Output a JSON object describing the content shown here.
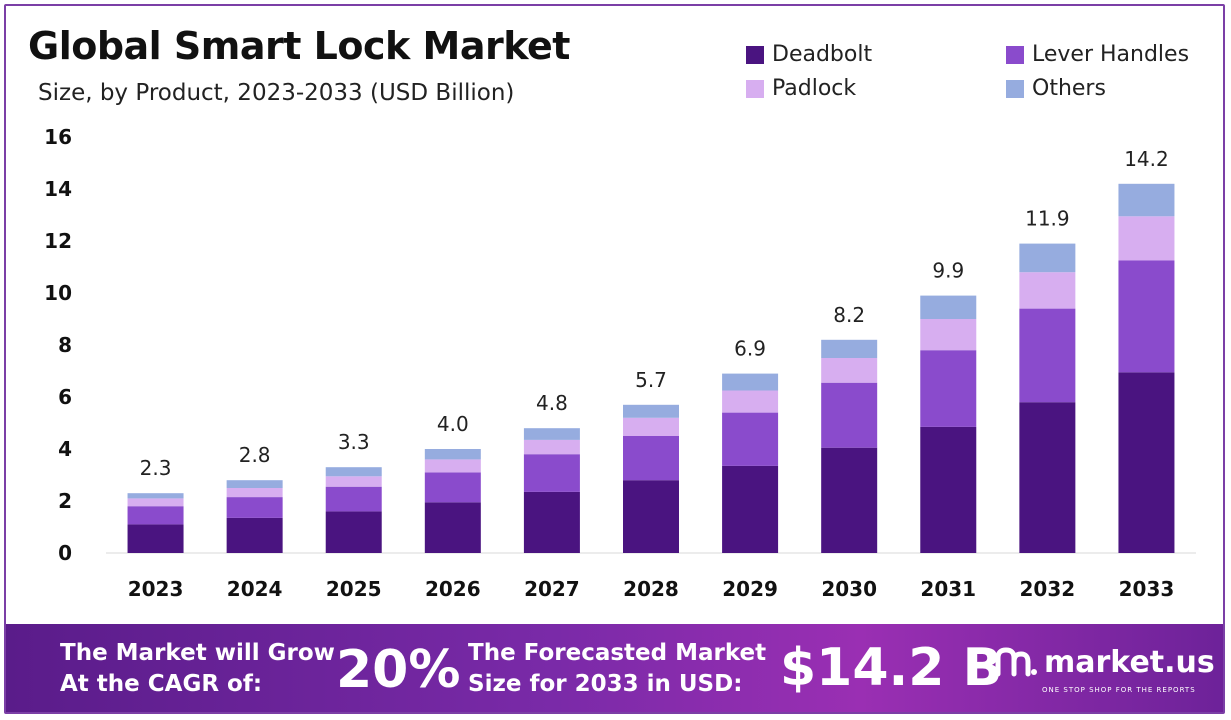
{
  "chart_data": {
    "type": "bar",
    "stacked": true,
    "title": "Global Smart Lock Market",
    "subtitle": "Size, by Product, 2023-2033 (USD Billion)",
    "xlabel": "",
    "ylabel": "",
    "ylim": [
      0,
      16
    ],
    "yticks": [
      0,
      2,
      4,
      6,
      8,
      10,
      12,
      14,
      16
    ],
    "grid": false,
    "legend_position": "top-right",
    "categories": [
      "2023",
      "2024",
      "2025",
      "2026",
      "2027",
      "2028",
      "2029",
      "2030",
      "2031",
      "2032",
      "2033"
    ],
    "totals": [
      "2.3",
      "2.8",
      "3.3",
      "4.0",
      "4.8",
      "5.7",
      "6.9",
      "8.2",
      "9.9",
      "11.9",
      "14.2"
    ],
    "series": [
      {
        "name": "Deadbolt",
        "color": "#4a1480",
        "values": [
          1.1,
          1.35,
          1.6,
          1.95,
          2.35,
          2.8,
          3.35,
          4.05,
          4.85,
          5.8,
          6.95
        ]
      },
      {
        "name": "Lever Handles",
        "color": "#8a4bcc",
        "values": [
          0.7,
          0.8,
          0.95,
          1.15,
          1.45,
          1.7,
          2.05,
          2.5,
          2.95,
          3.6,
          4.3
        ]
      },
      {
        "name": "Padlock",
        "color": "#d7aef0",
        "values": [
          0.3,
          0.35,
          0.4,
          0.5,
          0.55,
          0.7,
          0.85,
          0.95,
          1.2,
          1.4,
          1.7
        ]
      },
      {
        "name": "Others",
        "color": "#96acdf",
        "values": [
          0.2,
          0.3,
          0.35,
          0.4,
          0.45,
          0.5,
          0.65,
          0.7,
          0.9,
          1.1,
          1.25
        ]
      }
    ]
  },
  "footer": {
    "cagr_text_1": "The Market will Grow",
    "cagr_text_2": "At the CAGR of:",
    "cagr_value": "20%",
    "forecast_text_1": "The Forecasted Market",
    "forecast_text_2": "Size for 2033 in USD:",
    "forecast_value": "$14.2 B",
    "brand": "market.us",
    "tagline": "ONE STOP SHOP FOR THE REPORTS"
  }
}
